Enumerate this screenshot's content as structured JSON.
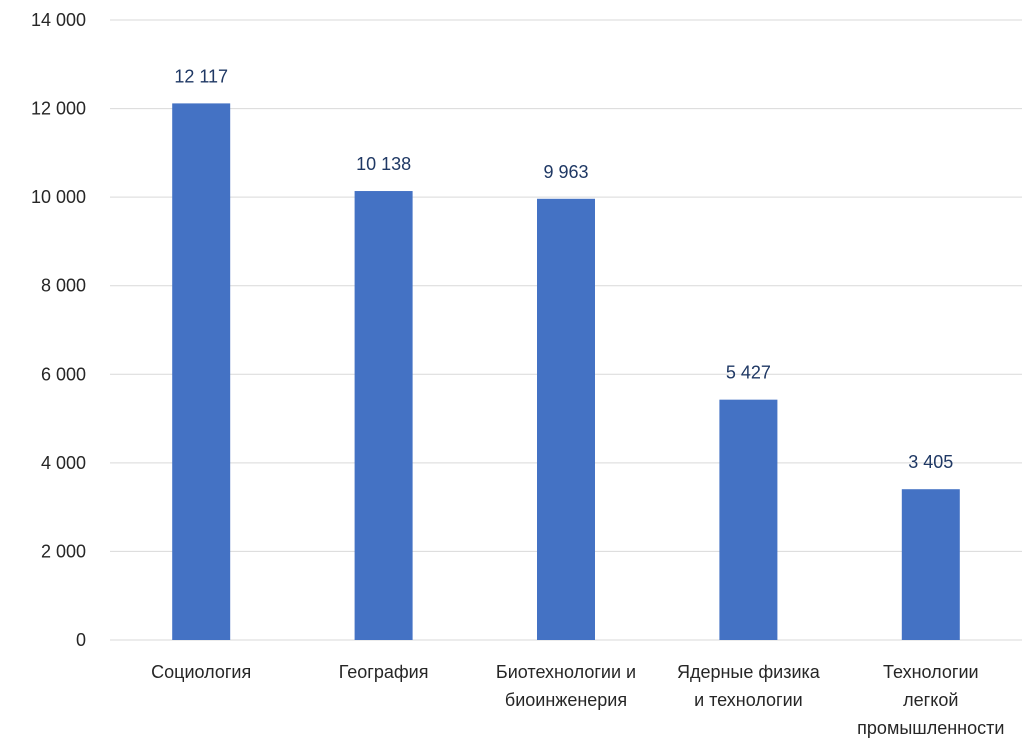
{
  "chart_data": {
    "type": "bar",
    "title": "",
    "xlabel": "",
    "ylabel": "",
    "categories": [
      [
        "Социология"
      ],
      [
        "География"
      ],
      [
        "Биотехнологии и",
        "биоинженерия"
      ],
      [
        "Ядерные физика",
        "и технологии"
      ],
      [
        "Технологии",
        "легкой",
        "промышленности"
      ]
    ],
    "values": [
      12117,
      10138,
      9963,
      5427,
      3405
    ],
    "value_labels": [
      "12 117",
      "10 138",
      "9 963",
      "5 427",
      "3 405"
    ],
    "ylim": [
      0,
      14000
    ],
    "yticks": [
      0,
      2000,
      4000,
      6000,
      8000,
      10000,
      12000,
      14000
    ],
    "ytick_labels": [
      "0",
      "2 000",
      "4 000",
      "6 000",
      "8 000",
      "10 000",
      "12 000",
      "14 000"
    ],
    "grid": true,
    "legend": "none",
    "colors": {
      "bar": "#4472C4",
      "grid": "#D9D9D9",
      "data_label": "#1F3864",
      "tick_label": "#262626"
    }
  }
}
